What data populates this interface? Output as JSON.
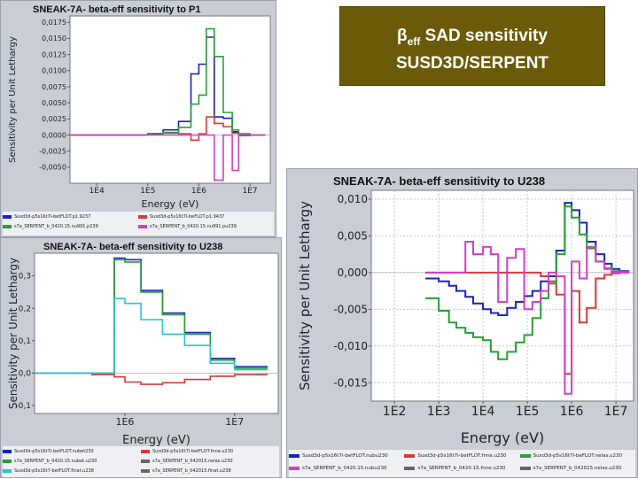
{
  "slide": {
    "title_line1_symbol": "β",
    "title_line1_sub": "eff",
    "title_line1_text": " SAD sensitivity",
    "title_line2": "SUSD3D/SERPENT",
    "title_bg": "#6b5a08"
  },
  "chart_data": [
    {
      "id": "p1",
      "type": "line",
      "step": true,
      "title": "SNEAK-7A- beta-eff sensitivity to P1",
      "xlabel": "Energy (eV)",
      "ylabel": "Sensitivity per Unit Lethargy",
      "xscale": "log",
      "xlim": [
        3000,
        25000000
      ],
      "ylim": [
        -0.0075,
        0.0185
      ],
      "xticks": [
        10000,
        100000,
        1000000,
        10000000
      ],
      "xtick_labels": [
        "1E4",
        "1E5",
        "1E6",
        "1E7"
      ],
      "yticks": [
        -0.005,
        -0.0025,
        0,
        0.0025,
        0.005,
        0.0075,
        0.01,
        0.0125,
        0.015,
        0.0175
      ],
      "ytick_labels": [
        "-0,0050",
        "-0,0025",
        "0,0000",
        "0,0025",
        "0,0050",
        "0,0075",
        "0,0100",
        "0,0125",
        "0,0150",
        "0,0175"
      ],
      "grid": false,
      "legend_rows": [
        [
          "Susd3d-p5s16t7i-betFLOT.p1.9237",
          "Susd3d-p5s16t7l-beFLOT.p1.9437"
        ],
        [
          "s7a_SERPENT_b_0420.15.nu991.p239",
          "s7a_SERPENT_b_0420.15.nu991.pu239"
        ]
      ],
      "edges": [
        3000,
        100000,
        200000,
        400000,
        700000,
        1000000,
        1400000,
        2000000,
        3000000,
        4500000,
        6000000,
        10000000,
        20000000
      ],
      "series": [
        {
          "name": "Susd3d-p5s16t7i-betFLOT.p1.9237",
          "color": "#1a25b8",
          "values": [
            0,
            0.0002,
            0.0008,
            0.0021,
            0.0095,
            0.011,
            0.0152,
            0.0028,
            0.0026,
            0.0005,
            0,
            0
          ]
        },
        {
          "name": "Susd3d-p5s16t7l-beFLOT.p1.9437",
          "color": "#d63a3a",
          "values": [
            0,
            0.0001,
            0.0003,
            0.0002,
            -0.0008,
            0.0002,
            0.0028,
            0.0018,
            0.0013,
            0.0003,
            -0.0001,
            0
          ]
        },
        {
          "name": "s7a_SERPENT_b_0420.15.nu991.p239",
          "color": "#2a9e38",
          "values": [
            0,
            0.0001,
            0.0004,
            0.0012,
            0.0048,
            0.0062,
            0.0165,
            0.0122,
            0.0035,
            0.0008,
            0.0002,
            0
          ]
        },
        {
          "name": "s7a_SERPENT_b_0420.15.nu991.pu239",
          "color": "#d23ec9",
          "values": [
            0,
            0,
            0,
            0,
            0,
            0,
            0,
            -0.007,
            0,
            -0.0055,
            0,
            0
          ]
        }
      ]
    },
    {
      "id": "u238-left",
      "type": "line",
      "step": true,
      "title": "SNEAK-7A- beta-eff sensitivity to U238",
      "xlabel": "Energy (eV)",
      "ylabel": "Sensitivity per Unit Lethargy",
      "xscale": "log",
      "xlim": [
        150000,
        25000000
      ],
      "ylim": [
        -0.125,
        0.37
      ],
      "xticks": [
        1000000,
        10000000
      ],
      "xtick_labels": [
        "1E6",
        "1E7"
      ],
      "yticks": [
        -0.1,
        0,
        0.1,
        0.2,
        0.3
      ],
      "ytick_labels": [
        "-0,1",
        "0,0",
        "0,1",
        "0,2",
        "0,3"
      ],
      "grid": false,
      "legend_rows": [
        [
          "Susd3d-p5s16t7i-betFLOT.nubet230",
          "Susd3d-p5s16t7l-betFLOT.fnne.u230"
        ],
        [
          "s7a_SERPENT_b_0420.15.nubet.u230",
          "s7a_SERPENT_b_042015.nelas.u230"
        ],
        [
          "Susd3d-p5s16t7-betFLOT.finat.u238",
          "s7a_SERPENT_b_042015.finat.u238"
        ]
      ],
      "edges": [
        150000,
        300000,
        500000,
        800000,
        1000000,
        1400000,
        2200000,
        3500000,
        6000000,
        10000000,
        20000000
      ],
      "series": [
        {
          "name": "Susd3d-p5s16t7i-betFLOT.nubet230",
          "color": "#1a25b8",
          "values": [
            0,
            0,
            0,
            0.355,
            0.35,
            0.255,
            0.185,
            0.125,
            0.045,
            0.02
          ]
        },
        {
          "name": "Susd3d-p5s16t7l-betFLOT.fnne.u230",
          "color": "#d63a3a",
          "values": [
            0,
            0,
            -0.005,
            -0.012,
            -0.028,
            -0.035,
            -0.03,
            -0.02,
            -0.01,
            -0.005
          ]
        },
        {
          "name": "s7a_SERPENT_b_0420.15.nubet.u230",
          "color": "#2a9e38",
          "values": [
            0,
            0,
            0,
            0.35,
            0.343,
            0.25,
            0.18,
            0.12,
            0.04,
            0.015
          ]
        },
        {
          "name": "Susd3d-p5s16t7-betFLOT.finat.u238",
          "color": "#27c4cf",
          "values": [
            0,
            0,
            0,
            0.23,
            0.215,
            0.165,
            0.12,
            0.085,
            0.03,
            0.01
          ]
        }
      ]
    },
    {
      "id": "u238-right",
      "type": "line",
      "step": true,
      "title": "SNEAK-7A- beta-eff sensitivity to U238",
      "xlabel": "Energy (eV)",
      "ylabel": "Sensitivity per Unit Lethargy",
      "xscale": "log",
      "xlim": [
        30,
        25000000
      ],
      "ylim": [
        -0.0175,
        0.0112
      ],
      "xticks": [
        100,
        1000,
        10000,
        100000,
        1000000,
        10000000
      ],
      "xtick_labels": [
        "1E2",
        "1E3",
        "1E4",
        "1E5",
        "1E6",
        "1E7"
      ],
      "yticks": [
        -0.015,
        -0.01,
        -0.005,
        0,
        0.005,
        0.01
      ],
      "ytick_labels": [
        "-0,015",
        "-0,010",
        "-0,005",
        "0,000",
        "0,005",
        "0,010"
      ],
      "grid": true,
      "legend_rows": [
        [
          "Susd3d-p5s16t7i-betFLOT.nubu230",
          "Susd3d-p5s16t7i-betFLOT.fnne.u230",
          "Susd3d-p5s16t7l-beFLOT.nelas.u230"
        ],
        [
          "s7a_SERPENT_b_0420.15.nubu230",
          "s7a_SERPENT_b_0420.15.fnne.u230",
          "s7a_SERPENT_b_042015.nelas.u230"
        ]
      ],
      "edges": [
        500,
        1000,
        1700,
        2500,
        4000,
        6000,
        10000,
        15000,
        22000,
        35000,
        55000,
        85000,
        130000,
        200000,
        300000,
        450000,
        700000,
        1000000,
        1500000,
        2200000,
        3500000,
        5500000,
        8000000,
        12000000,
        20000000
      ],
      "series": [
        {
          "name": "Susd3d-p5s16t7i-betFLOT.nubu230",
          "color": "#1a25b8",
          "values": [
            -0.0008,
            -0.0012,
            -0.0018,
            -0.0025,
            -0.0033,
            -0.0042,
            -0.005,
            -0.0055,
            -0.0058,
            -0.0048,
            -0.004,
            -0.0032,
            -0.0025,
            -0.0012,
            -0.0005,
            0.003,
            0.0095,
            0.0085,
            0.0068,
            0.0042,
            0.0025,
            0.0012,
            0.0005,
            0.0002
          ]
        },
        {
          "name": "Susd3d-p5s16t7i-betFLOT.fnne.u230",
          "color": "#d63a3a",
          "values": [
            0,
            0,
            0,
            0,
            0,
            0,
            0,
            0,
            0,
            0,
            0,
            0,
            0,
            -0.0005,
            -0.0012,
            -0.003,
            -0.0138,
            -0.0025,
            -0.0068,
            -0.0048,
            -0.0008,
            -0.0003,
            -0.0001,
            0
          ]
        },
        {
          "name": "Susd3d-p5s16t7l-beFLOT.nelas.u230",
          "color": "#2a9e38",
          "values": [
            -0.0035,
            -0.0052,
            -0.0068,
            -0.0075,
            -0.0082,
            -0.0088,
            -0.0092,
            -0.0108,
            -0.0118,
            -0.0108,
            -0.0095,
            -0.0085,
            -0.0062,
            -0.0035,
            -0.0015,
            0.0025,
            0.009,
            0.0075,
            0.0052,
            0.0033,
            0.0015,
            0.0006,
            0.0002,
            0.0001
          ]
        },
        {
          "name": "s7a_SERPENT_b_0420.15.nubu230",
          "color": "#d23ec9",
          "values": [
            0,
            0,
            0,
            0,
            0.0042,
            0.0025,
            0.0035,
            0.0025,
            -0.004,
            0.002,
            0.0032,
            -0.005,
            -0.004,
            -0.0025,
            0,
            -0.0005,
            -0.0165,
            0.0015,
            -0.0008,
            0.0035,
            0.0015,
            0.0005,
            0,
            0
          ]
        }
      ]
    }
  ]
}
